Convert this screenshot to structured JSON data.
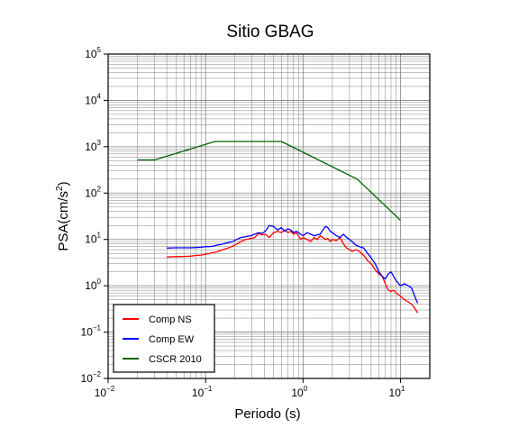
{
  "chart_data": {
    "type": "line",
    "title": "Sitio GBAG",
    "xlabel": "Periodo (s)",
    "ylabel_base": "PSA(cm/s",
    "ylabel_sup": "2",
    "ylabel_end": ")",
    "xscale": "log",
    "yscale": "log",
    "xlim": [
      0.01,
      20
    ],
    "ylim": [
      0.01,
      100000
    ],
    "grid": true,
    "legend_position": "bottom-left",
    "x_ticks": [
      {
        "value": 0.01,
        "base": "10",
        "exp": "−2"
      },
      {
        "value": 0.1,
        "base": "10",
        "exp": "−1"
      },
      {
        "value": 1,
        "base": "10",
        "exp": "0"
      },
      {
        "value": 10,
        "base": "10",
        "exp": "1"
      }
    ],
    "y_ticks": [
      {
        "value": 0.01,
        "base": "10",
        "exp": "−2"
      },
      {
        "value": 0.1,
        "base": "10",
        "exp": "−1"
      },
      {
        "value": 1,
        "base": "10",
        "exp": "0"
      },
      {
        "value": 10,
        "base": "10",
        "exp": "1"
      },
      {
        "value": 100,
        "base": "10",
        "exp": "2"
      },
      {
        "value": 1000,
        "base": "10",
        "exp": "3"
      },
      {
        "value": 10000,
        "base": "10",
        "exp": "4"
      },
      {
        "value": 100000,
        "base": "10",
        "exp": "5"
      }
    ],
    "series": [
      {
        "name": "Comp NS",
        "color": "#ff0000",
        "points": [
          [
            0.04,
            4.2
          ],
          [
            0.05,
            4.25
          ],
          [
            0.06,
            4.3
          ],
          [
            0.07,
            4.35
          ],
          [
            0.08,
            4.5
          ],
          [
            0.09,
            4.6
          ],
          [
            0.1,
            4.8
          ],
          [
            0.11,
            5.0
          ],
          [
            0.12,
            5.2
          ],
          [
            0.13,
            5.4
          ],
          [
            0.15,
            6.0
          ],
          [
            0.17,
            6.5
          ],
          [
            0.19,
            7.2
          ],
          [
            0.21,
            8.0
          ],
          [
            0.23,
            9.0
          ],
          [
            0.26,
            10.0
          ],
          [
            0.29,
            10.5
          ],
          [
            0.32,
            11.0
          ],
          [
            0.35,
            13.5
          ],
          [
            0.38,
            12.5
          ],
          [
            0.41,
            13.0
          ],
          [
            0.45,
            11.0
          ],
          [
            0.5,
            14.0
          ],
          [
            0.55,
            15.0
          ],
          [
            0.6,
            14.0
          ],
          [
            0.65,
            16.0
          ],
          [
            0.7,
            14.0
          ],
          [
            0.75,
            15.0
          ],
          [
            0.8,
            13.0
          ],
          [
            0.85,
            14.0
          ],
          [
            0.9,
            12.0
          ],
          [
            0.95,
            10.0
          ],
          [
            1.0,
            11.0
          ],
          [
            1.1,
            10.0
          ],
          [
            1.2,
            9.0
          ],
          [
            1.3,
            11.0
          ],
          [
            1.4,
            10.0
          ],
          [
            1.5,
            12.0
          ],
          [
            1.6,
            11.0
          ],
          [
            1.7,
            10.0
          ],
          [
            1.8,
            10.5
          ],
          [
            1.9,
            9.0
          ],
          [
            2.0,
            10.0
          ],
          [
            2.2,
            9.5
          ],
          [
            2.4,
            11.0
          ],
          [
            2.6,
            8.0
          ],
          [
            2.8,
            6.5
          ],
          [
            3.0,
            6.0
          ],
          [
            3.2,
            5.5
          ],
          [
            3.5,
            6.0
          ],
          [
            3.8,
            5.5
          ],
          [
            4.2,
            4.5
          ],
          [
            4.6,
            3.5
          ],
          [
            5.0,
            3.0
          ],
          [
            5.5,
            2.2
          ],
          [
            6.0,
            1.8
          ],
          [
            6.5,
            1.6
          ],
          [
            7.0,
            1.1
          ],
          [
            7.5,
            0.8
          ],
          [
            8.0,
            0.75
          ],
          [
            8.5,
            0.8
          ],
          [
            9.0,
            0.7
          ],
          [
            10.0,
            0.6
          ],
          [
            11.0,
            0.5
          ],
          [
            12.0,
            0.45
          ],
          [
            13.0,
            0.4
          ],
          [
            14.0,
            0.33
          ],
          [
            15.0,
            0.26
          ]
        ]
      },
      {
        "name": "Comp EW",
        "color": "#0000ff",
        "points": [
          [
            0.04,
            6.5
          ],
          [
            0.05,
            6.6
          ],
          [
            0.06,
            6.6
          ],
          [
            0.07,
            6.6
          ],
          [
            0.08,
            6.7
          ],
          [
            0.09,
            6.8
          ],
          [
            0.1,
            7.0
          ],
          [
            0.11,
            7.0
          ],
          [
            0.12,
            7.2
          ],
          [
            0.13,
            7.5
          ],
          [
            0.15,
            8.0
          ],
          [
            0.17,
            8.5
          ],
          [
            0.19,
            9.0
          ],
          [
            0.21,
            10.0
          ],
          [
            0.23,
            11.0
          ],
          [
            0.26,
            11.5
          ],
          [
            0.29,
            12.0
          ],
          [
            0.32,
            13.0
          ],
          [
            0.35,
            14.0
          ],
          [
            0.38,
            13.5
          ],
          [
            0.41,
            15.0
          ],
          [
            0.45,
            20.0
          ],
          [
            0.5,
            19.0
          ],
          [
            0.55,
            16.0
          ],
          [
            0.6,
            18.0
          ],
          [
            0.65,
            15.0
          ],
          [
            0.7,
            17.0
          ],
          [
            0.75,
            16.0
          ],
          [
            0.8,
            14.0
          ],
          [
            0.85,
            15.0
          ],
          [
            0.9,
            14.0
          ],
          [
            0.95,
            13.0
          ],
          [
            1.0,
            12.0
          ],
          [
            1.1,
            14.0
          ],
          [
            1.2,
            13.0
          ],
          [
            1.3,
            12.0
          ],
          [
            1.4,
            12.5
          ],
          [
            1.5,
            13.0
          ],
          [
            1.6,
            16.0
          ],
          [
            1.7,
            19.0
          ],
          [
            1.8,
            18.0
          ],
          [
            1.9,
            15.0
          ],
          [
            2.0,
            14.0
          ],
          [
            2.2,
            12.0
          ],
          [
            2.4,
            11.0
          ],
          [
            2.6,
            13.0
          ],
          [
            2.8,
            11.0
          ],
          [
            3.0,
            10.0
          ],
          [
            3.2,
            9.0
          ],
          [
            3.5,
            7.5
          ],
          [
            3.8,
            7.0
          ],
          [
            4.2,
            6.5
          ],
          [
            4.6,
            5.0
          ],
          [
            5.0,
            4.0
          ],
          [
            5.5,
            3.0
          ],
          [
            6.0,
            2.0
          ],
          [
            6.5,
            1.6
          ],
          [
            7.0,
            1.4
          ],
          [
            7.5,
            1.8
          ],
          [
            8.0,
            2.0
          ],
          [
            8.5,
            1.6
          ],
          [
            9.0,
            1.3
          ],
          [
            10.0,
            1.0
          ],
          [
            11.0,
            1.1
          ],
          [
            12.0,
            1.0
          ],
          [
            13.0,
            0.9
          ],
          [
            14.0,
            0.6
          ],
          [
            15.0,
            0.42
          ]
        ]
      },
      {
        "name": "CSCR 2010",
        "color": "#006400",
        "points": [
          [
            0.02,
            520
          ],
          [
            0.03,
            520
          ],
          [
            0.125,
            1300
          ],
          [
            0.6,
            1300
          ],
          [
            3.6,
            200
          ],
          [
            10.0,
            26
          ]
        ]
      }
    ]
  }
}
